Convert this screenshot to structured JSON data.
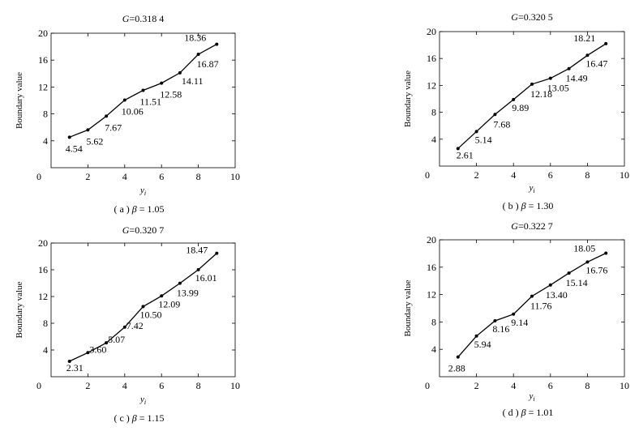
{
  "chart_data": [
    {
      "type": "line",
      "title": "G=0.318 4",
      "ylabel": "Boundary value",
      "xlabel": "y_i",
      "caption": {
        "prefix": "( a )",
        "param": "β",
        "eq": "=",
        "value": "1.05"
      },
      "xlim": [
        0,
        10
      ],
      "ylim": [
        0,
        20
      ],
      "xticks": [
        "0",
        "2",
        "4",
        "6",
        "8",
        "10"
      ],
      "yticks": [
        "4",
        "8",
        "12",
        "16",
        "20"
      ],
      "x": [
        1,
        2,
        3,
        4,
        5,
        6,
        7,
        8,
        9
      ],
      "y": [
        4.54,
        5.62,
        7.67,
        10.06,
        11.51,
        12.58,
        14.11,
        16.87,
        18.36
      ],
      "labels": [
        "4.54",
        "5.62",
        "7.67",
        "10.06",
        "11.51",
        "12.58",
        "14.11",
        "16.87",
        "18.36"
      ]
    },
    {
      "type": "line",
      "title": "G=0.320 5",
      "ylabel": "Boundary value",
      "xlabel": "y_i",
      "caption": {
        "prefix": "( b )",
        "param": "β",
        "eq": "=",
        "value": "1.30"
      },
      "xlim": [
        0,
        10
      ],
      "ylim": [
        0,
        20
      ],
      "xticks": [
        "0",
        "2",
        "4",
        "6",
        "8",
        "10"
      ],
      "yticks": [
        "4",
        "8",
        "12",
        "16",
        "20"
      ],
      "x": [
        1,
        2,
        3,
        4,
        5,
        6,
        7,
        8,
        9
      ],
      "y": [
        2.61,
        5.14,
        7.68,
        9.89,
        12.18,
        13.05,
        14.49,
        16.47,
        18.21
      ],
      "labels": [
        "2.61",
        "5.14",
        "7.68",
        "9.89",
        "12.18",
        "13.05",
        "14.49",
        "16.47",
        "18.21"
      ]
    },
    {
      "type": "line",
      "title": "G=0.320 7",
      "ylabel": "Boundary value",
      "xlabel": "y_i",
      "caption": {
        "prefix": "( c )",
        "param": "β",
        "eq": "=",
        "value": "1.15"
      },
      "xlim": [
        0,
        10
      ],
      "ylim": [
        0,
        20
      ],
      "xticks": [
        "0",
        "2",
        "4",
        "6",
        "8",
        "10"
      ],
      "yticks": [
        "4",
        "8",
        "12",
        "16",
        "20"
      ],
      "x": [
        1,
        2,
        3,
        4,
        5,
        6,
        7,
        8,
        9
      ],
      "y": [
        2.31,
        3.6,
        5.07,
        7.42,
        10.5,
        12.09,
        13.99,
        16.01,
        18.47
      ],
      "labels": [
        "2.31",
        "3.60",
        "5.07",
        "7.42",
        "10.50",
        "12.09",
        "13.99",
        "16.01",
        "18.47"
      ]
    },
    {
      "type": "line",
      "title": "G=0.322 7",
      "ylabel": "Boundary value",
      "xlabel": "y_i",
      "caption": {
        "prefix": "( d )",
        "param": "β",
        "eq": "=",
        "value": "1.01"
      },
      "xlim": [
        0,
        10
      ],
      "ylim": [
        0,
        20
      ],
      "xticks": [
        "0",
        "2",
        "4",
        "6",
        "8",
        "10"
      ],
      "yticks": [
        "4",
        "8",
        "12",
        "16",
        "20"
      ],
      "x": [
        1,
        2,
        3,
        4,
        5,
        6,
        7,
        8,
        9
      ],
      "y": [
        2.88,
        5.94,
        8.16,
        9.14,
        11.76,
        13.4,
        15.14,
        16.76,
        18.05
      ],
      "labels": [
        "2.88",
        "5.94",
        "8.16",
        "9.14",
        "11.76",
        "13.40",
        "15.14",
        "16.76",
        "18.05"
      ]
    }
  ]
}
